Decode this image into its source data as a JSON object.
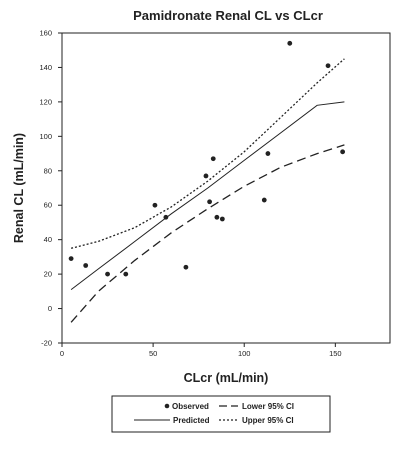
{
  "chart_data": {
    "type": "scatter",
    "title": "Pamidronate Renal CL vs CLcr",
    "xlabel": "CLcr (mL/min)",
    "ylabel": "Renal CL (mL/min)",
    "xlim": [
      0,
      180
    ],
    "ylim": [
      -20,
      160
    ],
    "x_ticks": [
      0,
      50,
      100,
      150
    ],
    "y_ticks": [
      -20,
      0,
      20,
      40,
      60,
      80,
      100,
      120,
      140,
      160
    ],
    "x_tick_labels": [
      "0",
      "50",
      "100",
      "150"
    ],
    "y_tick_labels": [
      "-20",
      "0",
      "20",
      "40",
      "60",
      "80",
      "100",
      "120",
      "140",
      "160"
    ],
    "grid": false,
    "series": [
      {
        "name": "Observed",
        "kind": "points",
        "x": [
          5,
          13,
          25,
          35,
          51,
          57,
          68,
          79,
          81,
          83,
          85,
          88,
          111,
          113,
          125,
          146,
          154
        ],
        "y": [
          29,
          25,
          20,
          20,
          60,
          53,
          24,
          77,
          62,
          87,
          53,
          52,
          63,
          90,
          154,
          141,
          91
        ]
      },
      {
        "name": "Predicted",
        "kind": "line",
        "style": "solid",
        "x": [
          5,
          20,
          40,
          60,
          80,
          100,
          120,
          140,
          155
        ],
        "y": [
          11,
          23,
          39,
          55,
          70,
          86,
          102,
          118,
          120
        ]
      },
      {
        "name": "Lower 95% CI",
        "kind": "line",
        "style": "long-dash",
        "x": [
          5,
          20,
          40,
          60,
          80,
          100,
          120,
          140,
          155
        ],
        "y": [
          -8,
          10,
          28,
          44,
          58,
          71,
          82,
          90,
          95
        ]
      },
      {
        "name": "Upper 95% CI",
        "kind": "line",
        "style": "dotted",
        "x": [
          5,
          20,
          40,
          60,
          80,
          100,
          120,
          140,
          155
        ],
        "y": [
          35,
          39,
          47,
          59,
          74,
          91,
          111,
          131,
          145
        ]
      }
    ],
    "legend": {
      "position": "bottom",
      "entries": [
        "Observed",
        "Lower 95% CI",
        "Predicted",
        "Upper 95% CI"
      ]
    }
  }
}
